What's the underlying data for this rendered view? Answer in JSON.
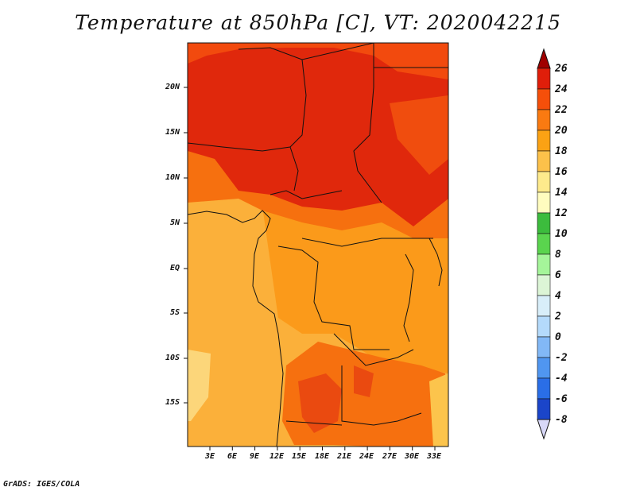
{
  "title": "Temperature at 850hPa [C], VT: 2020042215",
  "credit": "GrADS: IGES/COLA",
  "map": {
    "lat_labels": [
      "20N",
      "15N",
      "10N",
      "5N",
      "EQ",
      "5S",
      "10S",
      "15S"
    ],
    "lon_labels": [
      "3E",
      "6E",
      "9E",
      "12E",
      "15E",
      "18E",
      "21E",
      "24E",
      "27E",
      "30E",
      "33E"
    ],
    "lon_range": [
      0,
      35
    ],
    "lat_range": [
      -20,
      25
    ]
  },
  "legend": {
    "levels": [
      "26",
      "24",
      "22",
      "20",
      "18",
      "16",
      "14",
      "12",
      "10",
      "8",
      "6",
      "4",
      "2",
      "0",
      "-2",
      "-4",
      "-6",
      "-8"
    ],
    "colors": [
      "#a00000",
      "#e01e0a",
      "#f54f0a",
      "#fa7a11",
      "#fba214",
      "#fcc14a",
      "#feea8c",
      "#fffcbf",
      "#3cbc3d",
      "#5ad44e",
      "#a5f59a",
      "#dcf5d6",
      "#d8eef9",
      "#b4dafb",
      "#82b8f6",
      "#5096f0",
      "#2a6ee7",
      "#1b45c9",
      "#0b1b93",
      "#1a1a80",
      "#d8d8f8"
    ]
  }
}
